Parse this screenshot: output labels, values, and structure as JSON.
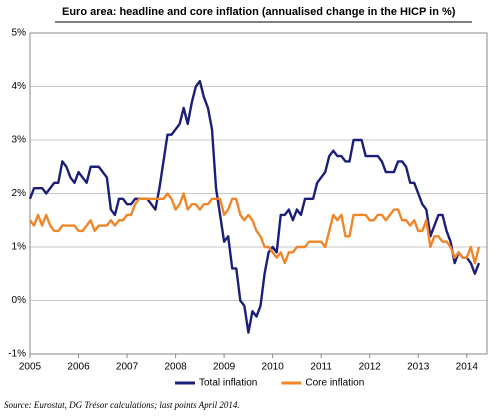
{
  "chart_data": {
    "type": "line",
    "title": "Euro area: headline and core inflation (annualised change in the HICP in %)",
    "source": "Source: Eurostat, DG Trésor calculations; last points April 2014.",
    "categories": [
      "2005",
      null,
      null,
      null,
      null,
      null,
      null,
      null,
      null,
      null,
      null,
      null,
      "2006",
      null,
      null,
      null,
      null,
      null,
      null,
      null,
      null,
      null,
      null,
      null,
      "2007",
      null,
      null,
      null,
      null,
      null,
      null,
      null,
      null,
      null,
      null,
      null,
      "2008",
      null,
      null,
      null,
      null,
      null,
      null,
      null,
      null,
      null,
      null,
      null,
      "2009",
      null,
      null,
      null,
      null,
      null,
      null,
      null,
      null,
      null,
      null,
      null,
      "2010",
      null,
      null,
      null,
      null,
      null,
      null,
      null,
      null,
      null,
      null,
      null,
      "2011",
      null,
      null,
      null,
      null,
      null,
      null,
      null,
      null,
      null,
      null,
      null,
      "2012",
      null,
      null,
      null,
      null,
      null,
      null,
      null,
      null,
      null,
      null,
      null,
      "2013",
      null,
      null,
      null,
      null,
      null,
      null,
      null,
      null,
      null,
      null,
      null,
      "2014",
      null,
      null,
      null
    ],
    "series": [
      {
        "name": "Total inflation",
        "color": "#1c1f78",
        "values": [
          1.9,
          2.1,
          2.1,
          2.1,
          2.0,
          2.1,
          2.2,
          2.2,
          2.6,
          2.5,
          2.3,
          2.2,
          2.4,
          2.3,
          2.2,
          2.5,
          2.5,
          2.5,
          2.4,
          2.3,
          1.7,
          1.6,
          1.9,
          1.9,
          1.8,
          1.8,
          1.9,
          1.9,
          1.9,
          1.9,
          1.8,
          1.7,
          2.1,
          2.6,
          3.1,
          3.1,
          3.2,
          3.3,
          3.6,
          3.3,
          3.7,
          4.0,
          4.1,
          3.8,
          3.6,
          3.2,
          2.1,
          1.6,
          1.1,
          1.2,
          0.6,
          0.6,
          0.0,
          -0.1,
          -0.6,
          -0.2,
          -0.3,
          -0.1,
          0.5,
          0.9,
          1.0,
          0.9,
          1.6,
          1.6,
          1.7,
          1.5,
          1.7,
          1.6,
          1.9,
          1.9,
          1.9,
          2.2,
          2.3,
          2.4,
          2.7,
          2.8,
          2.7,
          2.7,
          2.6,
          2.6,
          3.0,
          3.0,
          3.0,
          2.7,
          2.7,
          2.7,
          2.7,
          2.6,
          2.4,
          2.4,
          2.4,
          2.6,
          2.6,
          2.5,
          2.2,
          2.2,
          2.0,
          1.8,
          1.7,
          1.2,
          1.4,
          1.6,
          1.6,
          1.3,
          1.1,
          0.7,
          0.9,
          0.8,
          0.8,
          0.7,
          0.5,
          0.7
        ]
      },
      {
        "name": "Core inflation",
        "color": "#f0862a",
        "values": [
          1.5,
          1.4,
          1.6,
          1.4,
          1.6,
          1.4,
          1.3,
          1.3,
          1.4,
          1.4,
          1.4,
          1.4,
          1.3,
          1.3,
          1.4,
          1.5,
          1.3,
          1.4,
          1.4,
          1.4,
          1.5,
          1.4,
          1.5,
          1.5,
          1.6,
          1.6,
          1.8,
          1.9,
          1.9,
          1.9,
          1.9,
          1.9,
          1.9,
          1.9,
          2.0,
          1.9,
          1.7,
          1.8,
          2.0,
          1.7,
          1.8,
          1.8,
          1.7,
          1.8,
          1.8,
          1.9,
          1.9,
          1.9,
          1.6,
          1.7,
          1.9,
          1.9,
          1.6,
          1.5,
          1.6,
          1.5,
          1.3,
          1.2,
          1.0,
          1.0,
          0.9,
          0.8,
          0.9,
          0.7,
          0.9,
          0.9,
          1.0,
          1.0,
          1.0,
          1.1,
          1.1,
          1.1,
          1.1,
          1.0,
          1.3,
          1.6,
          1.5,
          1.6,
          1.2,
          1.2,
          1.6,
          1.6,
          1.6,
          1.6,
          1.5,
          1.5,
          1.6,
          1.6,
          1.5,
          1.6,
          1.7,
          1.7,
          1.5,
          1.5,
          1.4,
          1.5,
          1.3,
          1.3,
          1.5,
          1.0,
          1.2,
          1.2,
          1.1,
          1.1,
          1.0,
          0.8,
          0.9,
          0.8,
          0.8,
          1.0,
          0.7,
          1.0
        ]
      }
    ],
    "ylim": [
      -1,
      5
    ],
    "yticks": [
      {
        "value": -1,
        "label": "-1%"
      },
      {
        "value": 0,
        "label": "0%"
      },
      {
        "value": 1,
        "label": "1%"
      },
      {
        "value": 2,
        "label": "2%"
      },
      {
        "value": 3,
        "label": "3%"
      },
      {
        "value": 4,
        "label": "4%"
      },
      {
        "value": 5,
        "label": "5%"
      }
    ],
    "grid": true,
    "legend": "bottom"
  }
}
